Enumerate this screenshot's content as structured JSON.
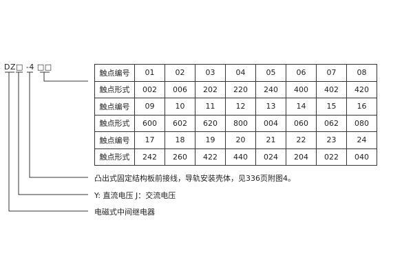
{
  "code": {
    "prefix": "DZ",
    "box1": "□",
    "mid": " -4 ",
    "box2": "□□"
  },
  "table": [
    [
      "触点编号",
      "01",
      "02",
      "03",
      "04",
      "05",
      "06",
      "07",
      "08"
    ],
    [
      "触点形式",
      "002",
      "006",
      "202",
      "220",
      "240",
      "400",
      "402",
      "420"
    ],
    [
      "触点编号",
      "09",
      "10",
      "11",
      "12",
      "13",
      "14",
      "15",
      "16"
    ],
    [
      "触点形式",
      "600",
      "602",
      "620",
      "800",
      "004",
      "060",
      "062",
      "080"
    ],
    [
      "触点编号",
      "17",
      "18",
      "19",
      "20",
      "21",
      "22",
      "23",
      "24"
    ],
    [
      "触点形式",
      "242",
      "260",
      "422",
      "440",
      "024",
      "204",
      "022",
      "040"
    ]
  ],
  "notes": [
    "凸出式固定结构板前接线，导轨安装壳体，见336页附图4。",
    "Y: 直流电压   J：交流电压",
    "电磁式中间继电器"
  ]
}
